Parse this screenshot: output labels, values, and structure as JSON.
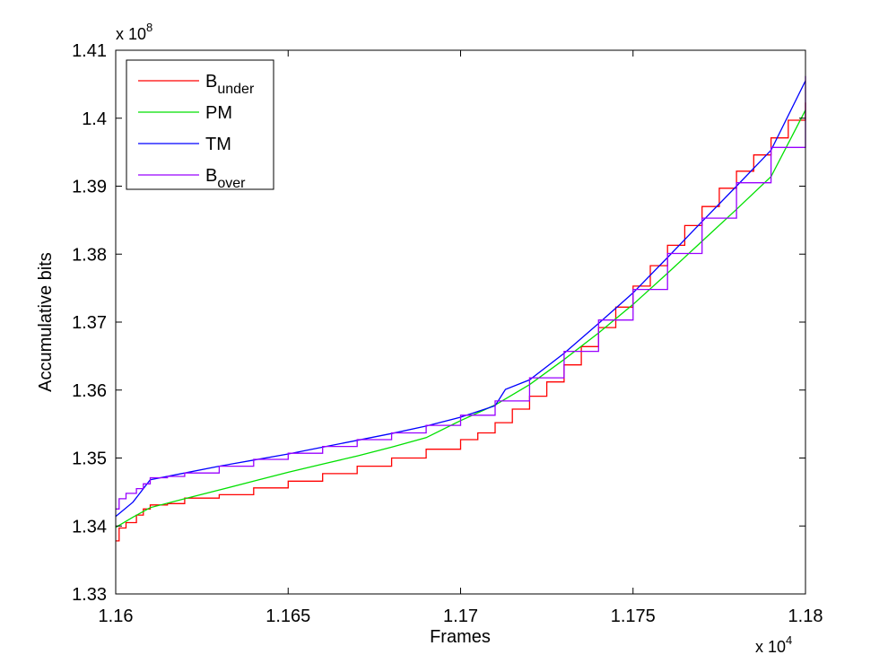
{
  "chart_data": {
    "type": "line",
    "title": "",
    "xlabel": "Frames",
    "ylabel": "Accumulative bits",
    "x_multiplier": "x 10",
    "x_multiplier_exp": "4",
    "y_multiplier": "x 10",
    "y_multiplier_exp": "8",
    "xlim": [
      1.16,
      1.18
    ],
    "ylim": [
      1.33,
      1.41
    ],
    "xticks": [
      1.16,
      1.165,
      1.17,
      1.175,
      1.18
    ],
    "xtick_labels": [
      "1.16",
      "1.165",
      "1.17",
      "1.175",
      "1.18"
    ],
    "yticks": [
      1.33,
      1.34,
      1.35,
      1.36,
      1.37,
      1.38,
      1.39,
      1.4,
      1.41
    ],
    "ytick_labels": [
      "1.33",
      "1.34",
      "1.35",
      "1.36",
      "1.37",
      "1.38",
      "1.39",
      "1.4",
      "1.41"
    ],
    "grid": false,
    "legend_position": "top-left",
    "series": [
      {
        "name_main": "B",
        "name_sub": "under",
        "color": "#ff0000",
        "style": "step",
        "points": [
          [
            1.16,
            1.3378
          ],
          [
            1.1601,
            1.3397
          ],
          [
            1.1603,
            1.3405
          ],
          [
            1.1606,
            1.3416
          ],
          [
            1.1608,
            1.3425
          ],
          [
            1.161,
            1.3431
          ],
          [
            1.1615,
            1.3433
          ],
          [
            1.162,
            1.3441
          ],
          [
            1.163,
            1.3446
          ],
          [
            1.164,
            1.3456
          ],
          [
            1.165,
            1.3466
          ],
          [
            1.166,
            1.3477
          ],
          [
            1.167,
            1.3488
          ],
          [
            1.168,
            1.35
          ],
          [
            1.169,
            1.3513
          ],
          [
            1.17,
            1.3527
          ],
          [
            1.1705,
            1.3537
          ],
          [
            1.171,
            1.3552
          ],
          [
            1.1715,
            1.3572
          ],
          [
            1.172,
            1.3591
          ],
          [
            1.1725,
            1.3612
          ],
          [
            1.173,
            1.3637
          ],
          [
            1.1735,
            1.3664
          ],
          [
            1.174,
            1.3692
          ],
          [
            1.1745,
            1.3722
          ],
          [
            1.175,
            1.3753
          ],
          [
            1.1755,
            1.3783
          ],
          [
            1.176,
            1.3813
          ],
          [
            1.1765,
            1.3842
          ],
          [
            1.177,
            1.387
          ],
          [
            1.1775,
            1.3897
          ],
          [
            1.178,
            1.3922
          ],
          [
            1.1785,
            1.3946
          ],
          [
            1.179,
            1.3971
          ],
          [
            1.1795,
            1.3997
          ],
          [
            1.18,
            1.4023
          ]
        ]
      },
      {
        "name_main": "PM",
        "name_sub": "",
        "color": "#00e000",
        "style": "line",
        "points": [
          [
            1.16,
            1.3398
          ],
          [
            1.1605,
            1.3413
          ],
          [
            1.161,
            1.3427
          ],
          [
            1.162,
            1.344
          ],
          [
            1.163,
            1.3453
          ],
          [
            1.164,
            1.3466
          ],
          [
            1.165,
            1.3479
          ],
          [
            1.166,
            1.3491
          ],
          [
            1.167,
            1.3503
          ],
          [
            1.168,
            1.3516
          ],
          [
            1.169,
            1.353
          ],
          [
            1.17,
            1.3555
          ],
          [
            1.171,
            1.3578
          ],
          [
            1.172,
            1.3608
          ],
          [
            1.173,
            1.3645
          ],
          [
            1.174,
            1.3684
          ],
          [
            1.175,
            1.3726
          ],
          [
            1.176,
            1.3772
          ],
          [
            1.177,
            1.3819
          ],
          [
            1.178,
            1.3866
          ],
          [
            1.179,
            1.3914
          ],
          [
            1.18,
            1.4012
          ]
        ]
      },
      {
        "name_main": "TM",
        "name_sub": "",
        "color": "#0000ff",
        "style": "line",
        "points": [
          [
            1.16,
            1.3414
          ],
          [
            1.1605,
            1.3435
          ],
          [
            1.161,
            1.3468
          ],
          [
            1.162,
            1.3478
          ],
          [
            1.163,
            1.3488
          ],
          [
            1.164,
            1.3497
          ],
          [
            1.165,
            1.3506
          ],
          [
            1.166,
            1.3516
          ],
          [
            1.167,
            1.3526
          ],
          [
            1.168,
            1.3536
          ],
          [
            1.169,
            1.3547
          ],
          [
            1.17,
            1.356
          ],
          [
            1.171,
            1.3577
          ],
          [
            1.1713,
            1.3601
          ],
          [
            1.172,
            1.3615
          ],
          [
            1.173,
            1.3654
          ],
          [
            1.174,
            1.3698
          ],
          [
            1.175,
            1.3743
          ],
          [
            1.176,
            1.3795
          ],
          [
            1.177,
            1.3848
          ],
          [
            1.178,
            1.39
          ],
          [
            1.179,
            1.3953
          ],
          [
            1.18,
            1.4055
          ]
        ]
      },
      {
        "name_main": "B",
        "name_sub": "over",
        "color": "#9900ff",
        "style": "step",
        "points": [
          [
            1.16,
            1.3425
          ],
          [
            1.1601,
            1.344
          ],
          [
            1.1603,
            1.3448
          ],
          [
            1.1606,
            1.3455
          ],
          [
            1.1608,
            1.3462
          ],
          [
            1.161,
            1.3471
          ],
          [
            1.1615,
            1.3473
          ],
          [
            1.162,
            1.3478
          ],
          [
            1.163,
            1.3488
          ],
          [
            1.164,
            1.3498
          ],
          [
            1.165,
            1.3507
          ],
          [
            1.166,
            1.3517
          ],
          [
            1.167,
            1.3527
          ],
          [
            1.168,
            1.3537
          ],
          [
            1.169,
            1.3548
          ],
          [
            1.17,
            1.3563
          ],
          [
            1.171,
            1.3584
          ],
          [
            1.172,
            1.3618
          ],
          [
            1.173,
            1.3657
          ],
          [
            1.174,
            1.3703
          ],
          [
            1.175,
            1.3748
          ],
          [
            1.176,
            1.3801
          ],
          [
            1.177,
            1.3853
          ],
          [
            1.178,
            1.3905
          ],
          [
            1.179,
            1.3957
          ],
          [
            1.18,
            1.4062
          ]
        ]
      }
    ]
  }
}
